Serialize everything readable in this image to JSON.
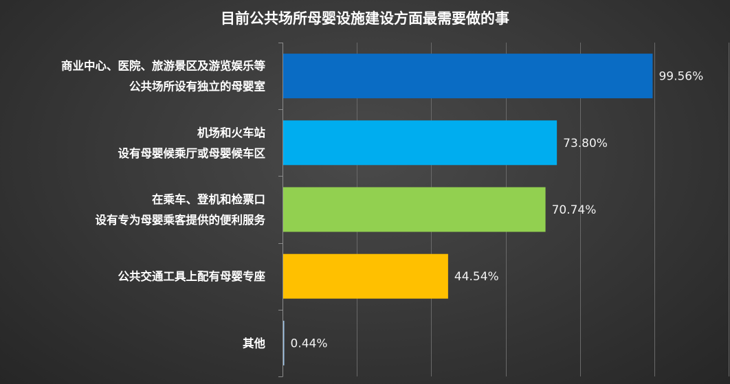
{
  "chart_data": {
    "type": "bar",
    "orientation": "horizontal",
    "title": "目前公共场所母婴设施建设方面最需要做的事",
    "categories": [
      [
        "商业中心、医院、旅游景区及游览娱乐等",
        "公共场所设有独立的母婴室"
      ],
      [
        "机场和火车站",
        "设有母婴候乘厅或母婴候车区"
      ],
      [
        "在乘车、登机和检票口",
        "设有专为母婴乘客提供的便利服务"
      ],
      [
        "公共交通工具上配有母婴专座"
      ],
      [
        "其他"
      ]
    ],
    "values": [
      99.56,
      73.8,
      70.74,
      44.54,
      0.44
    ],
    "value_labels": [
      "99.56%",
      "73.80%",
      "70.74%",
      "44.54%",
      "0.44%"
    ],
    "unit": "%",
    "colors": [
      "#0a6cc4",
      "#00adef",
      "#92d050",
      "#ffc000",
      "#9dc3e6"
    ],
    "xlim": [
      0,
      120
    ],
    "grid_step": 20,
    "grid": true,
    "legend": "none"
  }
}
